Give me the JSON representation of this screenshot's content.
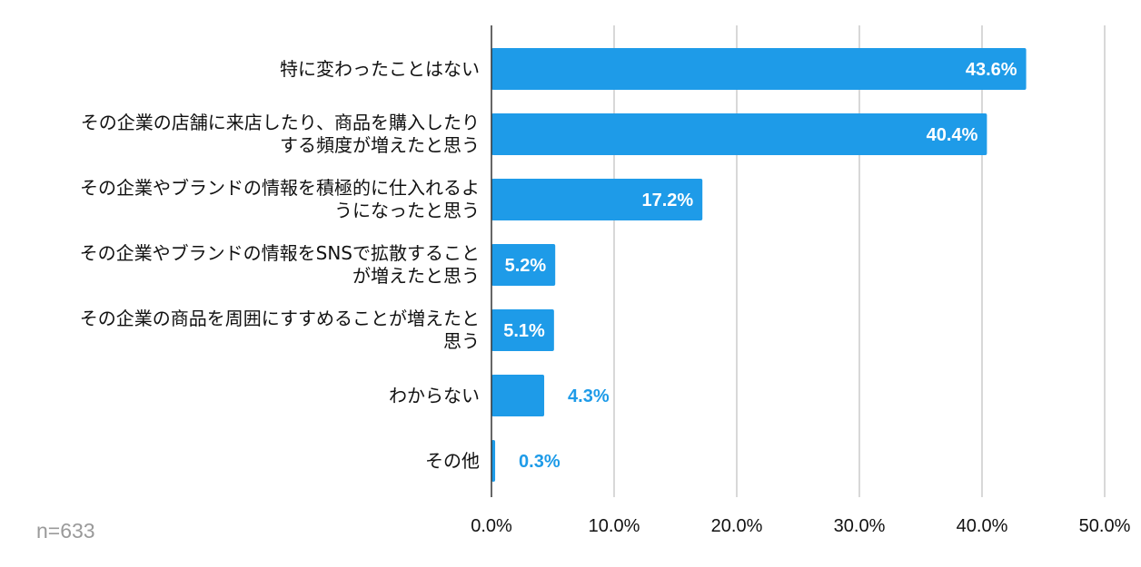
{
  "chart_data": {
    "type": "bar",
    "orientation": "horizontal",
    "categories": [
      [
        "特に変わったことはない"
      ],
      [
        "その企業の店舗に来店したり、商品を購入したり",
        "する頻度が増えたと思う"
      ],
      [
        "その企業やブランドの情報を積極的に仕入れるよ",
        "うになったと思う"
      ],
      [
        "その企業やブランドの情報をSNSで拡散すること",
        "が増えたと思う"
      ],
      [
        "その企業の商品を周囲にすすめることが増えたと",
        "思う"
      ],
      [
        "わからない"
      ],
      [
        "その他"
      ]
    ],
    "values": [
      43.6,
      40.4,
      17.2,
      5.2,
      5.1,
      4.3,
      0.3
    ],
    "value_labels": [
      "43.6%",
      "40.4%",
      "17.2%",
      "5.2%",
      "5.1%",
      "4.3%",
      "0.3%"
    ],
    "x_ticks": [
      "0.0%",
      "10.0%",
      "20.0%",
      "30.0%",
      "40.0%",
      "50.0%"
    ],
    "xlim": [
      0,
      50
    ],
    "grid": true,
    "bar_color": "#1e9be8",
    "label_inside_color": "#ffffff",
    "label_outside_color": "#1e9be8"
  },
  "note": "n=633"
}
